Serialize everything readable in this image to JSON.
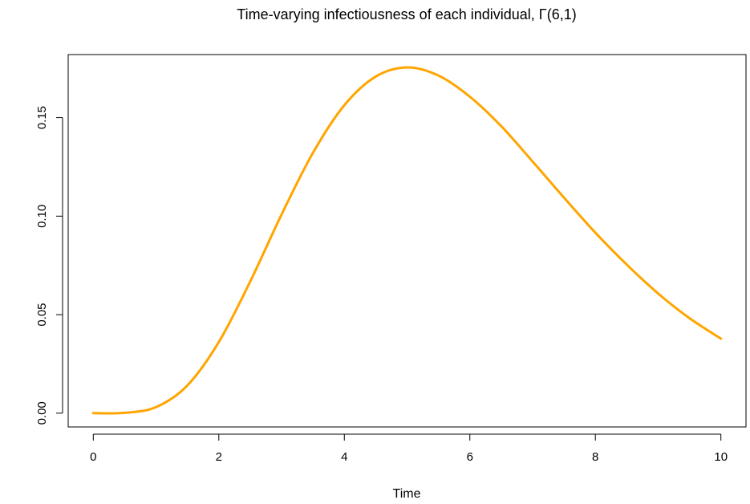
{
  "chart_data": {
    "type": "line",
    "title": "Time-varying infectiousness of each individual, Γ(6,1)",
    "xlabel": "Time",
    "ylabel": "",
    "xlim": [
      -0.4,
      10.4
    ],
    "ylim": [
      -0.007,
      0.182
    ],
    "x_ticks": [
      0,
      2,
      4,
      6,
      8,
      10
    ],
    "x_tick_labels": [
      "0",
      "2",
      "4",
      "6",
      "8",
      "10"
    ],
    "y_ticks": [
      0.0,
      0.05,
      0.1,
      0.15
    ],
    "y_tick_labels": [
      "0.00",
      "0.05",
      "0.10",
      "0.15"
    ],
    "grid": false,
    "legend": "none",
    "series": [
      {
        "color": "#FFA500",
        "x": [
          0,
          0.5,
          1,
          1.5,
          2,
          2.5,
          3,
          3.5,
          4,
          4.5,
          5,
          5.5,
          6,
          6.5,
          7,
          7.5,
          8,
          8.5,
          9,
          9.5,
          10
        ],
        "y": [
          0,
          0.00016,
          0.00307,
          0.01412,
          0.03609,
          0.0668,
          0.10082,
          0.13213,
          0.15629,
          0.17082,
          0.17547,
          0.17135,
          0.16062,
          0.14566,
          0.12772,
          0.10938,
          0.0916,
          0.07539,
          0.06073,
          0.04818,
          0.03783
        ]
      }
    ]
  }
}
